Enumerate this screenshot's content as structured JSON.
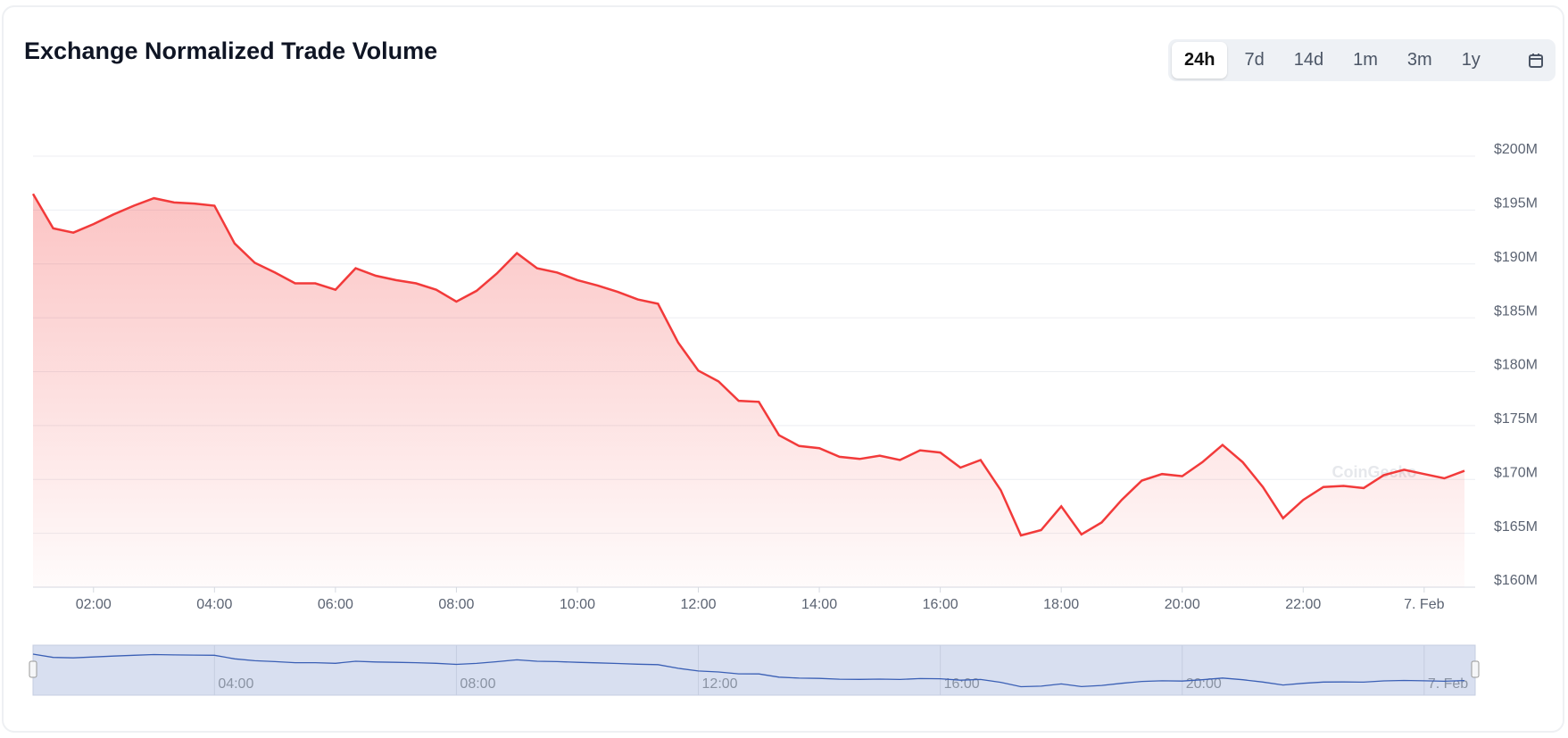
{
  "chart_data": {
    "type": "line",
    "title": "Exchange Normalized Trade Volume",
    "range_buttons": [
      "24h",
      "7d",
      "14d",
      "1m",
      "3m",
      "1y"
    ],
    "watermark": "CoinGecko",
    "x": [
      "01:00",
      "01:20",
      "01:40",
      "02:00",
      "02:20",
      "02:40",
      "03:00",
      "03:20",
      "03:40",
      "04:00",
      "04:20",
      "04:40",
      "05:00",
      "05:20",
      "05:40",
      "06:00",
      "06:20",
      "06:40",
      "07:00",
      "07:20",
      "07:40",
      "08:00",
      "08:20",
      "08:40",
      "09:00",
      "09:20",
      "09:40",
      "10:00",
      "10:20",
      "10:40",
      "11:00",
      "11:20",
      "11:40",
      "12:00",
      "12:20",
      "12:40",
      "13:00",
      "13:20",
      "13:40",
      "14:00",
      "14:20",
      "14:40",
      "15:00",
      "15:20",
      "15:40",
      "16:00",
      "16:20",
      "16:40",
      "17:00",
      "17:20",
      "17:40",
      "18:00",
      "18:20",
      "18:40",
      "19:00",
      "19:20",
      "19:40",
      "20:00",
      "20:20",
      "20:40",
      "21:00",
      "21:20",
      "21:40",
      "22:00",
      "22:20",
      "22:40",
      "23:00",
      "23:20",
      "23:40",
      "00:00",
      "00:20",
      "00:40"
    ],
    "series": [
      {
        "name": "Trade Volume",
        "color": "#f23a3a",
        "values": [
          196.5,
          193.3,
          192.9,
          193.7,
          194.6,
          195.4,
          196.1,
          195.7,
          195.6,
          195.4,
          191.9,
          190.1,
          189.2,
          188.2,
          188.2,
          187.6,
          189.6,
          188.9,
          188.5,
          188.2,
          187.6,
          186.5,
          187.5,
          189.1,
          191.0,
          189.6,
          189.2,
          188.5,
          188.0,
          187.4,
          186.7,
          186.3,
          182.7,
          180.1,
          179.1,
          177.3,
          177.2,
          174.1,
          173.1,
          172.9,
          172.1,
          171.9,
          172.2,
          171.8,
          172.7,
          172.5,
          171.1,
          171.8,
          169.0,
          164.8,
          165.3,
          167.5,
          164.9,
          166.0,
          168.1,
          169.9,
          170.5,
          170.3,
          171.6,
          173.2,
          171.6,
          169.3,
          166.4,
          168.1,
          169.3,
          169.4,
          169.2,
          170.4,
          170.9,
          170.5,
          170.1,
          170.8
        ]
      }
    ],
    "ylim": [
      160,
      200
    ],
    "yticks": [
      {
        "value": 160,
        "label": "$160M"
      },
      {
        "value": 165,
        "label": "$165M"
      },
      {
        "value": 170,
        "label": "$170M"
      },
      {
        "value": 175,
        "label": "$175M"
      },
      {
        "value": 180,
        "label": "$180M"
      },
      {
        "value": 185,
        "label": "$185M"
      },
      {
        "value": 190,
        "label": "$190M"
      },
      {
        "value": 195,
        "label": "$195M"
      },
      {
        "value": 200,
        "label": "$200M"
      }
    ],
    "xticks": [
      "02:00",
      "04:00",
      "06:00",
      "08:00",
      "10:00",
      "12:00",
      "14:00",
      "16:00",
      "18:00",
      "20:00",
      "22:00",
      {
        "value": "00:00",
        "label": "7. Feb"
      }
    ],
    "grid": true
  }
}
